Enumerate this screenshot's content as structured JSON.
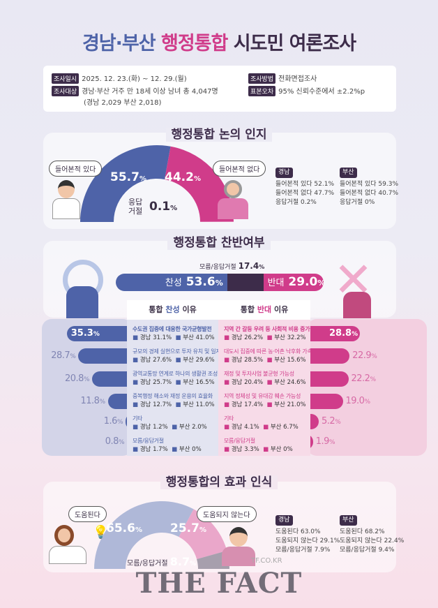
{
  "title": {
    "part1": "경남·부산",
    "part2": "행정통합",
    "part3": "시도민 여론조사"
  },
  "info": {
    "date_label": "조사일시",
    "date": "2025. 12. 23.(화) ~ 12. 29.(월)",
    "target_label": "조사대상",
    "target": "경남·부산 거주 만 18세 이상 남녀 총 4,047명",
    "target_sub": "(경남 2,029 부산 2,018)",
    "method_label": "조사방법",
    "method": "전화면접조사",
    "error_label": "표본오차",
    "error": "95% 신뢰수준에서 ±2.2%p"
  },
  "colors": {
    "blue": "#4e63a8",
    "pink": "#d03c8a",
    "dark": "#3d2c4a"
  },
  "awareness": {
    "title": "행정통합 논의 인지",
    "yes_label": "들어본적 있다",
    "yes": "55.7",
    "no_label": "들어본적 없다",
    "no": "44.2",
    "refuse_label": "응답\n거절",
    "refuse_l1": "응답",
    "refuse_l2": "거절",
    "refuse": "0.1",
    "unit": "%",
    "gyeongnam": {
      "tag": "경남",
      "lines": [
        "들어본적 있다 52.1%",
        "들어본적 없다 47.7%",
        "응답거절 0.2%"
      ]
    },
    "busan": {
      "tag": "부산",
      "lines": [
        "들어본적 있다 59.3%",
        "들어본적 없다 40.7%",
        "응답거절 0%"
      ]
    }
  },
  "stance": {
    "title": "행정통합 찬반여부",
    "unknown_label": "모름/응답거절",
    "unknown": "17.4",
    "for_label": "찬성",
    "for": "53.6",
    "against_label": "반대",
    "against": "29.0",
    "unit": "%",
    "for_reasons_title": {
      "a": "통합 ",
      "b": "찬성",
      "c": " 이유"
    },
    "against_reasons_title": {
      "a": "통합 ",
      "b": "반대",
      "c": " 이유"
    },
    "for_reasons": [
      {
        "text": "수도권 집중에 대응한 국가균형발전",
        "gn": "경남 31.1%",
        "bs": "부산 41.0%",
        "total": 35.3
      },
      {
        "text": "규모의 경제 실현으로 투자 유치 및 일자리 확대",
        "gn": "경남 27.6%",
        "bs": "부산 29.6%",
        "total": 28.7
      },
      {
        "text": "광역교통망 연계로 하나의 생활권 조성",
        "gn": "경남 25.7%",
        "bs": "부산 16.5%",
        "total": 20.8
      },
      {
        "text": "중복행정 해소와 재정 운용의 효율화",
        "gn": "경남 12.7%",
        "bs": "부산 11.0%",
        "total": 11.8
      },
      {
        "text": "기타",
        "gn": "경남 1.2%",
        "bs": "부산 2.0%",
        "total": 1.6
      },
      {
        "text": "모름/응답거절",
        "gn": "경남 1.7%",
        "bs": "부산 0%",
        "total": 0.8
      }
    ],
    "against_reasons": [
      {
        "text": "지역 간 갈등 우려 등 사회적 비용 증가",
        "gn": "경남 26.2%",
        "bs": "부산 32.2%",
        "total": 28.8
      },
      {
        "text": "대도시 집중에 따른 농·어촌 낙후화 가속",
        "gn": "경남 28.5%",
        "bs": "부산 15.6%",
        "total": 22.9
      },
      {
        "text": "재정 및 투자사업 불균형 가능성",
        "gn": "경남 20.4%",
        "bs": "부산 24.6%",
        "total": 22.2
      },
      {
        "text": "지역 정체성 및 유대감 훼손 가능성",
        "gn": "경남 17.4%",
        "bs": "부산 21.0%",
        "total": 19.0
      },
      {
        "text": "기타",
        "gn": "경남 4.1%",
        "bs": "부산 6.7%",
        "total": 5.2
      },
      {
        "text": "모름/응답거절",
        "gn": "경남 3.3%",
        "bs": "부산 0%",
        "total": 1.9
      }
    ]
  },
  "effect": {
    "title": "행정통합의 효과 인식",
    "yes_label": "도움된다",
    "yes": "65.6",
    "no_label": "도움되지 않는다",
    "no": "25.7",
    "unknown_label": "모름/응답거절",
    "unknown": "8.7",
    "unit": "%",
    "gyeongnam": {
      "tag": "경남",
      "lines": [
        "도움된다 63.0%",
        "도움되지 않는다 29.1%",
        "모름/응답거절 7.9%"
      ]
    },
    "busan": {
      "tag": "부산",
      "lines": [
        "도움된다 68.2%",
        "도움되지 않는다 22.4%",
        "모름/응답거절 9.4%"
      ]
    }
  },
  "watermark": {
    "logo": "THE FACT",
    "url": "TF.CO.KR"
  }
}
